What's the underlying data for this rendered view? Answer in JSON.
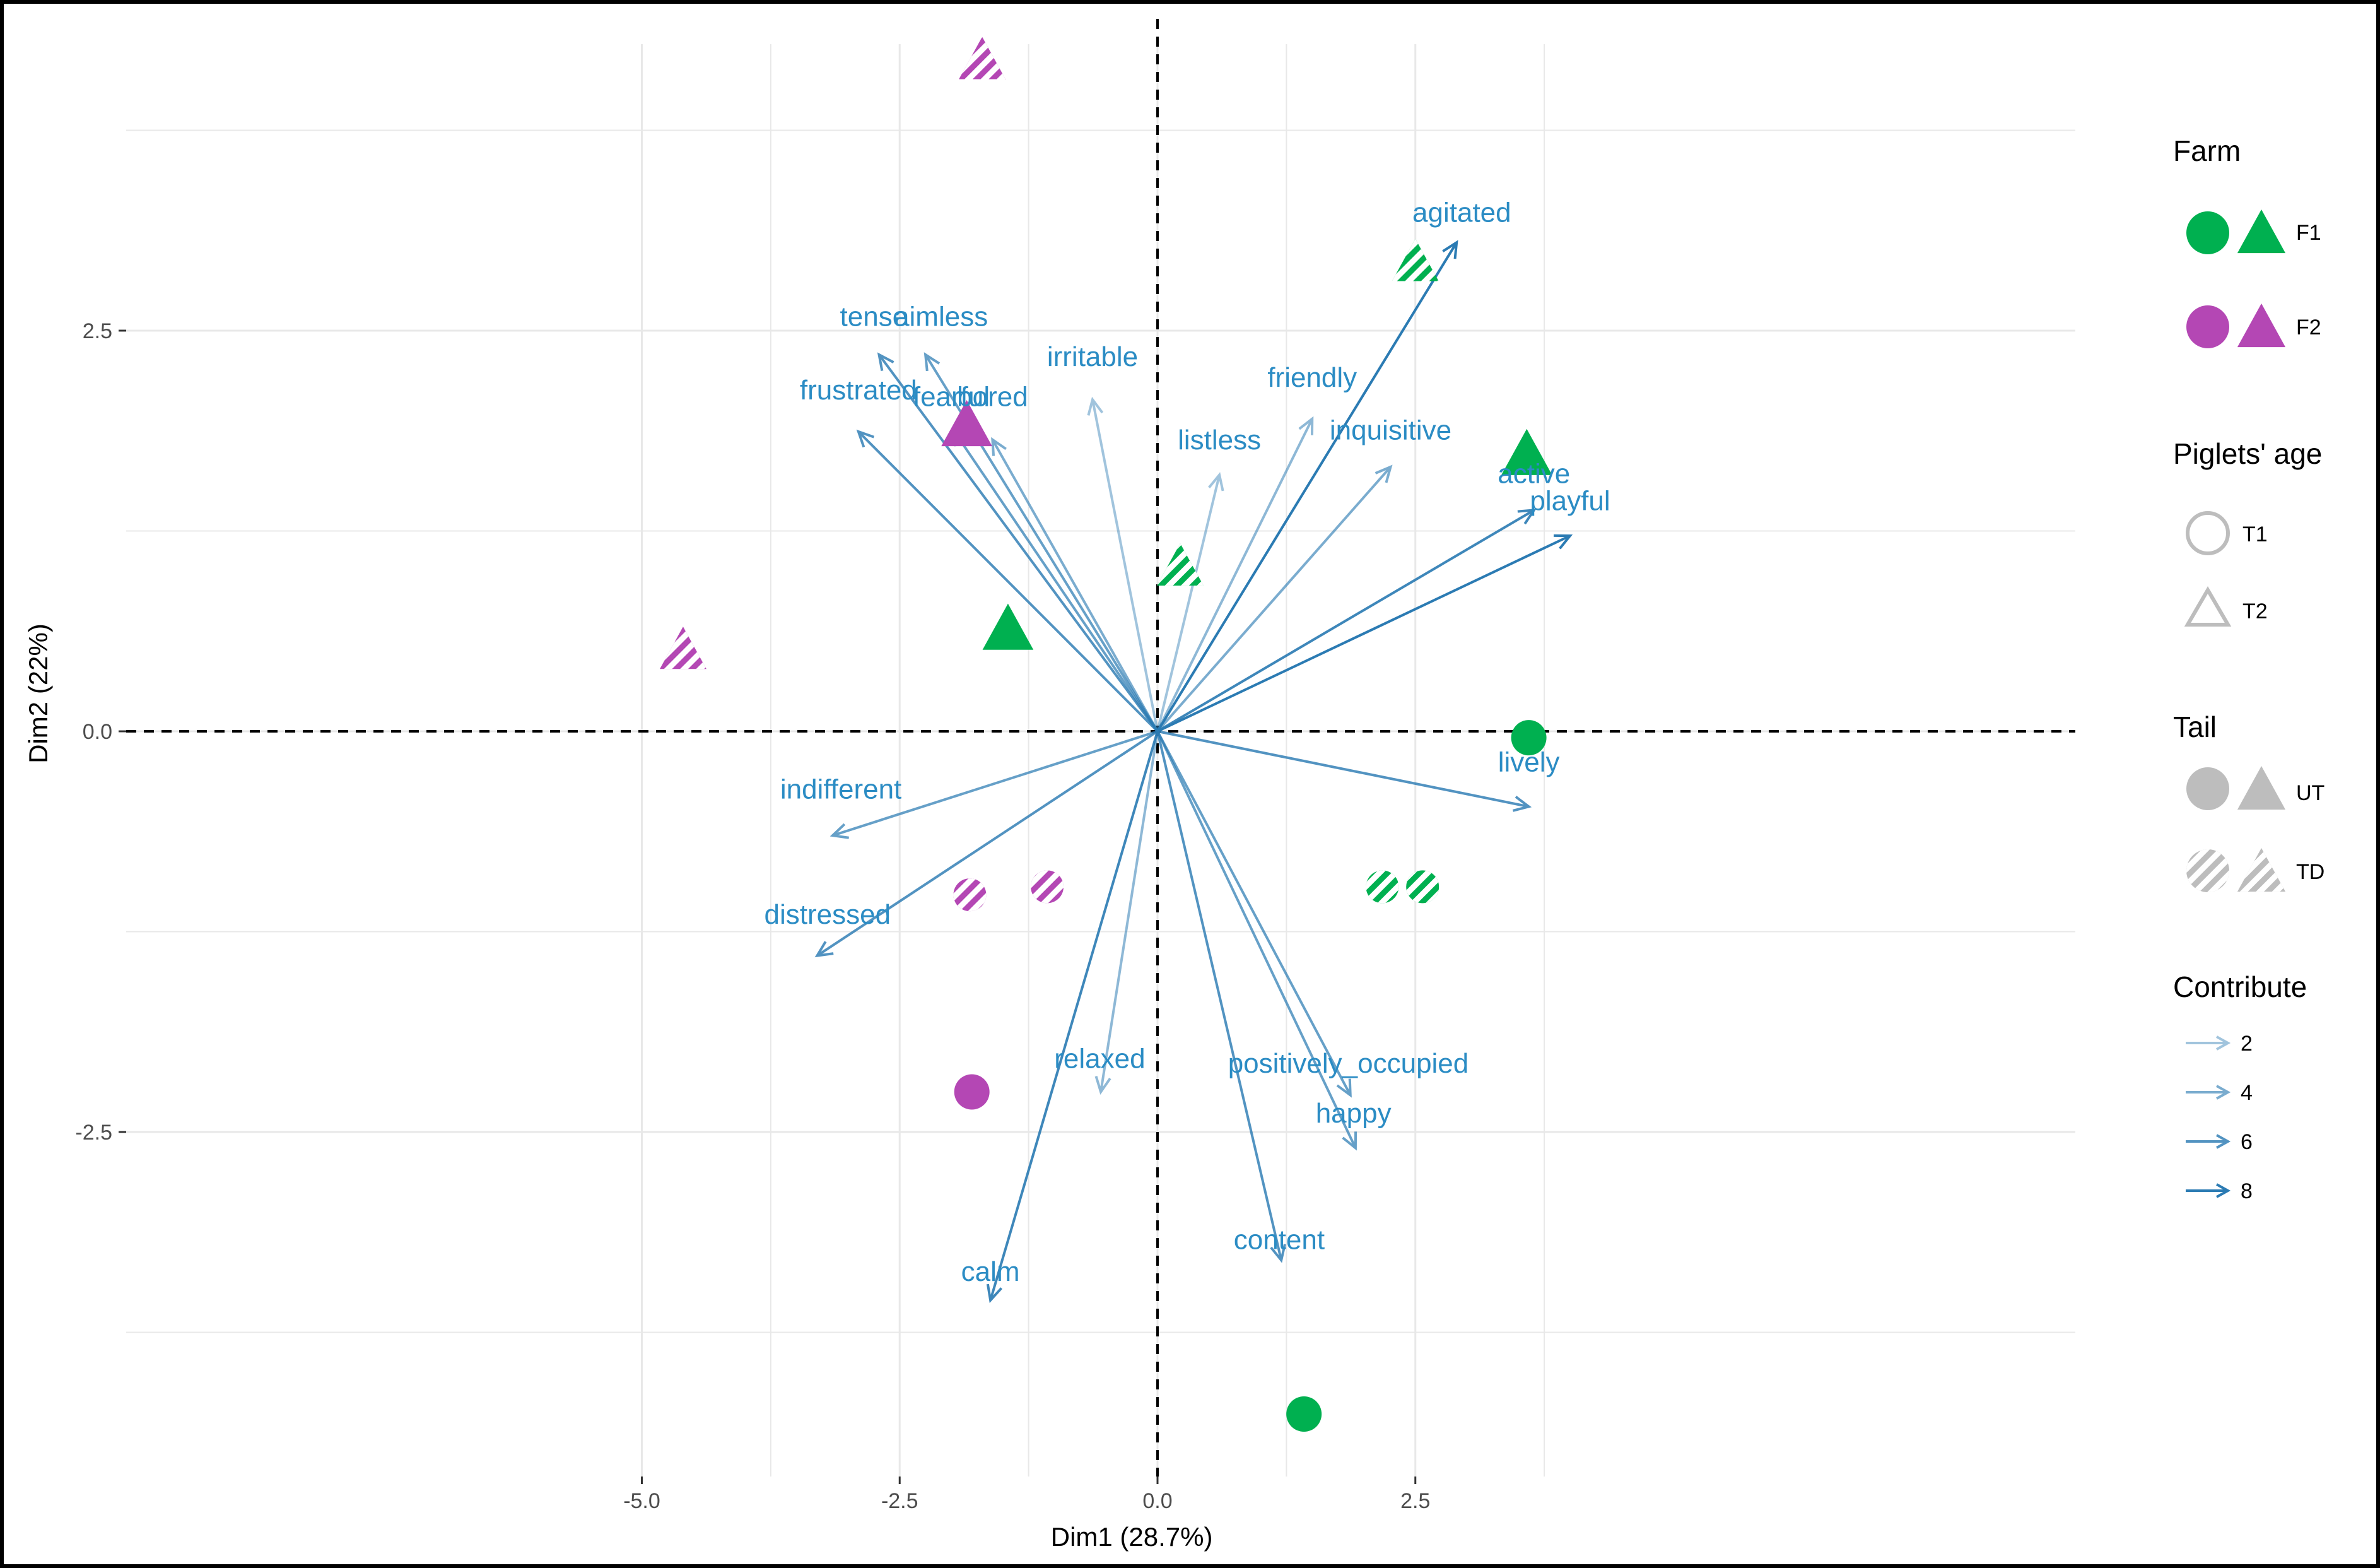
{
  "chart_data": {
    "type": "scatter",
    "subtype": "pca-biplot",
    "xlabel": "Dim1 (28.7%)",
    "ylabel": "Dim2 (22%)",
    "xlim": [
      -5.5,
      4.5
    ],
    "ylim": [
      -4.7,
      4.5
    ],
    "x_ticks": [
      -5.0,
      -2.5,
      0.0,
      2.5
    ],
    "x_tick_labels": [
      "-5.0",
      "-2.5",
      "0.0",
      "2.5"
    ],
    "y_ticks": [
      -2.5,
      0.0,
      2.5
    ],
    "y_tick_labels": [
      "-2.5",
      "0.0",
      "2.5"
    ],
    "grid": true,
    "reference_lines": [
      {
        "axis": "x",
        "value": 0,
        "style": "dashed"
      },
      {
        "axis": "y",
        "value": 0,
        "style": "dashed"
      }
    ],
    "variables": [
      {
        "name": "agitated",
        "x": 2.9,
        "y": 3.05,
        "contrib": 8
      },
      {
        "name": "active",
        "x": 3.65,
        "y": 1.38,
        "contrib": 7
      },
      {
        "name": "playful",
        "x": 4.0,
        "y": 1.22,
        "contrib": 8
      },
      {
        "name": "lively",
        "x": 3.6,
        "y": -0.47,
        "contrib": 6
      },
      {
        "name": "friendly",
        "x": 1.5,
        "y": 1.95,
        "contrib": 3
      },
      {
        "name": "inquisitive",
        "x": 2.26,
        "y": 1.65,
        "contrib": 4
      },
      {
        "name": "listless",
        "x": 0.6,
        "y": 1.6,
        "contrib": 2
      },
      {
        "name": "irritable",
        "x": -0.63,
        "y": 2.07,
        "contrib": 2
      },
      {
        "name": "tense",
        "x": -2.7,
        "y": 2.35,
        "contrib": 6
      },
      {
        "name": "aimless",
        "x": -2.25,
        "y": 2.35,
        "contrib": 5
      },
      {
        "name": "fearful",
        "x": -1.98,
        "y": 1.88,
        "contrib": 5
      },
      {
        "name": "bored",
        "x": -1.6,
        "y": 1.82,
        "contrib": 4
      },
      {
        "name": "frustrated",
        "x": -2.9,
        "y": 1.87,
        "contrib": 6
      },
      {
        "name": "indifferent",
        "x": -3.15,
        "y": -0.65,
        "contrib": 5
      },
      {
        "name": "distressed",
        "x": -3.3,
        "y": -1.4,
        "contrib": 6
      },
      {
        "name": "relaxed",
        "x": -0.55,
        "y": -2.25,
        "contrib": 3
      },
      {
        "name": "calm",
        "x": -1.62,
        "y": -3.55,
        "contrib": 7
      },
      {
        "name": "content",
        "x": 1.2,
        "y": -3.3,
        "contrib": 6
      },
      {
        "name": "positively_occupied",
        "x": 1.87,
        "y": -2.27,
        "contrib": 5
      },
      {
        "name": "happy",
        "x": 1.92,
        "y": -2.6,
        "contrib": 5
      }
    ],
    "points": [
      {
        "farm": "F2",
        "age": "T2",
        "tail": "TD",
        "x": -1.7,
        "y": 4.18
      },
      {
        "farm": "F2",
        "age": "T2",
        "tail": "TD",
        "x": -4.6,
        "y": 0.5
      },
      {
        "farm": "F2",
        "age": "T2",
        "tail": "UT",
        "x": -1.85,
        "y": 1.9
      },
      {
        "farm": "F1",
        "age": "T2",
        "tail": "UT",
        "x": -1.45,
        "y": 0.63
      },
      {
        "farm": "F1",
        "age": "T2",
        "tail": "TD",
        "x": 0.22,
        "y": 1.02
      },
      {
        "farm": "F1",
        "age": "T2",
        "tail": "TD",
        "x": 2.5,
        "y": 2.92
      },
      {
        "farm": "F1",
        "age": "T2",
        "tail": "UT",
        "x": 3.58,
        "y": 1.72
      },
      {
        "farm": "F1",
        "age": "T1",
        "tail": "UT",
        "x": 3.6,
        "y": -0.04
      },
      {
        "farm": "F1",
        "age": "T1",
        "tail": "TD",
        "x": 2.18,
        "y": -0.97
      },
      {
        "farm": "F1",
        "age": "T1",
        "tail": "TD",
        "x": 2.57,
        "y": -0.97
      },
      {
        "farm": "F2",
        "age": "T1",
        "tail": "TD",
        "x": -1.82,
        "y": -1.02
      },
      {
        "farm": "F2",
        "age": "T1",
        "tail": "TD",
        "x": -1.07,
        "y": -0.97
      },
      {
        "farm": "F2",
        "age": "T1",
        "tail": "UT",
        "x": -1.8,
        "y": -2.25
      },
      {
        "farm": "F1",
        "age": "T1",
        "tail": "UT",
        "x": 1.42,
        "y": -4.26
      }
    ],
    "legend": {
      "placement": "right",
      "farm": {
        "title": "Farm",
        "items": [
          {
            "label": "F1",
            "color": "#00b050"
          },
          {
            "label": "F2",
            "color": "#b447b4"
          }
        ]
      },
      "age": {
        "title": "Piglets' age",
        "items": [
          {
            "label": "T1",
            "shape": "circle"
          },
          {
            "label": "T2",
            "shape": "triangle"
          }
        ]
      },
      "tail": {
        "title": "Tail",
        "items": [
          {
            "label": "UT",
            "fill": "solid"
          },
          {
            "label": "TD",
            "fill": "striped"
          }
        ]
      },
      "contribute": {
        "title": "Contribute",
        "items": [
          {
            "label": "2",
            "value": 2
          },
          {
            "label": "4",
            "value": 4
          },
          {
            "label": "6",
            "value": 6
          },
          {
            "label": "8",
            "value": 8
          }
        ]
      }
    },
    "colors": {
      "F1": "#00b050",
      "F2": "#b447b4",
      "arrow": "#2b7bb3",
      "label": "#2b8cc4",
      "legend_shape": "#bdbdbd",
      "grid": "#e8e8e8"
    }
  }
}
